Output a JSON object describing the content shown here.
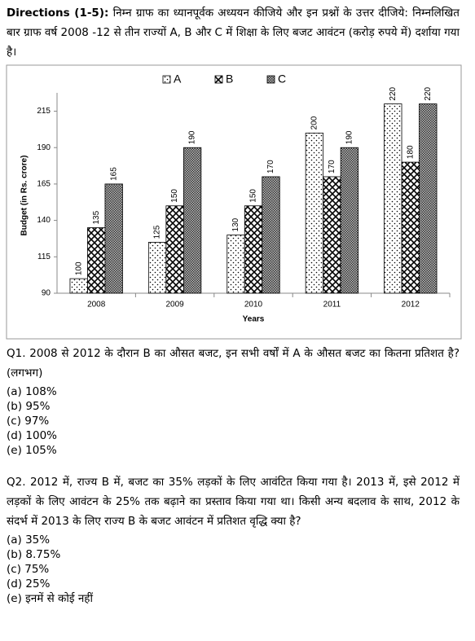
{
  "directions": {
    "label": "Directions (1-5):",
    "text": "निम्न ग्राफ का ध्यानपूर्वक अध्ययन कीजिये और इन प्रश्नों के उत्तर दीजिये: निम्नलिखित बार ग्राफ वर्ष 2008 -12 से तीन राज्यों A, B और C में शिक्षा के लिए बजट आवंटन (करोड़ रुपये में) दर्शाया गया है।"
  },
  "chart": {
    "type": "bar",
    "x_label": "Years",
    "y_label": "Budget (in Rs. crore)",
    "categories": [
      "2008",
      "2009",
      "2010",
      "2011",
      "2012"
    ],
    "series": [
      {
        "name": "A",
        "pattern": "dots",
        "values": [
          100,
          125,
          130,
          200,
          220
        ]
      },
      {
        "name": "B",
        "pattern": "cross",
        "values": [
          135,
          150,
          150,
          170,
          180
        ]
      },
      {
        "name": "C",
        "pattern": "checker",
        "values": [
          165,
          190,
          170,
          190,
          220
        ]
      }
    ],
    "ylim": [
      90,
      222
    ],
    "yticks": [
      90,
      115,
      140,
      165,
      190,
      215
    ],
    "legend": "top"
  },
  "questions": [
    {
      "text": "Q1. 2008 से 2012 के दौरान B का औसत बजट, इन सभी वर्षों में A के औसत बजट का कितना प्रतिशत है? (लगभग)",
      "options": [
        "(a) 108%",
        "(b) 95%",
        "(c) 97%",
        "(d) 100%",
        "(e) 105%"
      ]
    },
    {
      "text": "Q2. 2012 में, राज्य B में, बजट का 35% लड़कों के लिए आवंटित किया गया है। 2013 में, इसे 2012 में लड़कों के लिए आवंटन के 25% तक बढ़ाने का प्रस्ताव किया गया था। किसी अन्य बदलाव के साथ, 2012 के संदर्भ में 2013 के लिए राज्य B के बजट आवंटन में प्रतिशत वृद्धि क्या है?",
      "options": [
        "(a) 35%",
        "(b) 8.75%",
        "(c) 75%",
        "(d) 25%",
        "(e) इनमें से कोई नहीं"
      ]
    }
  ]
}
